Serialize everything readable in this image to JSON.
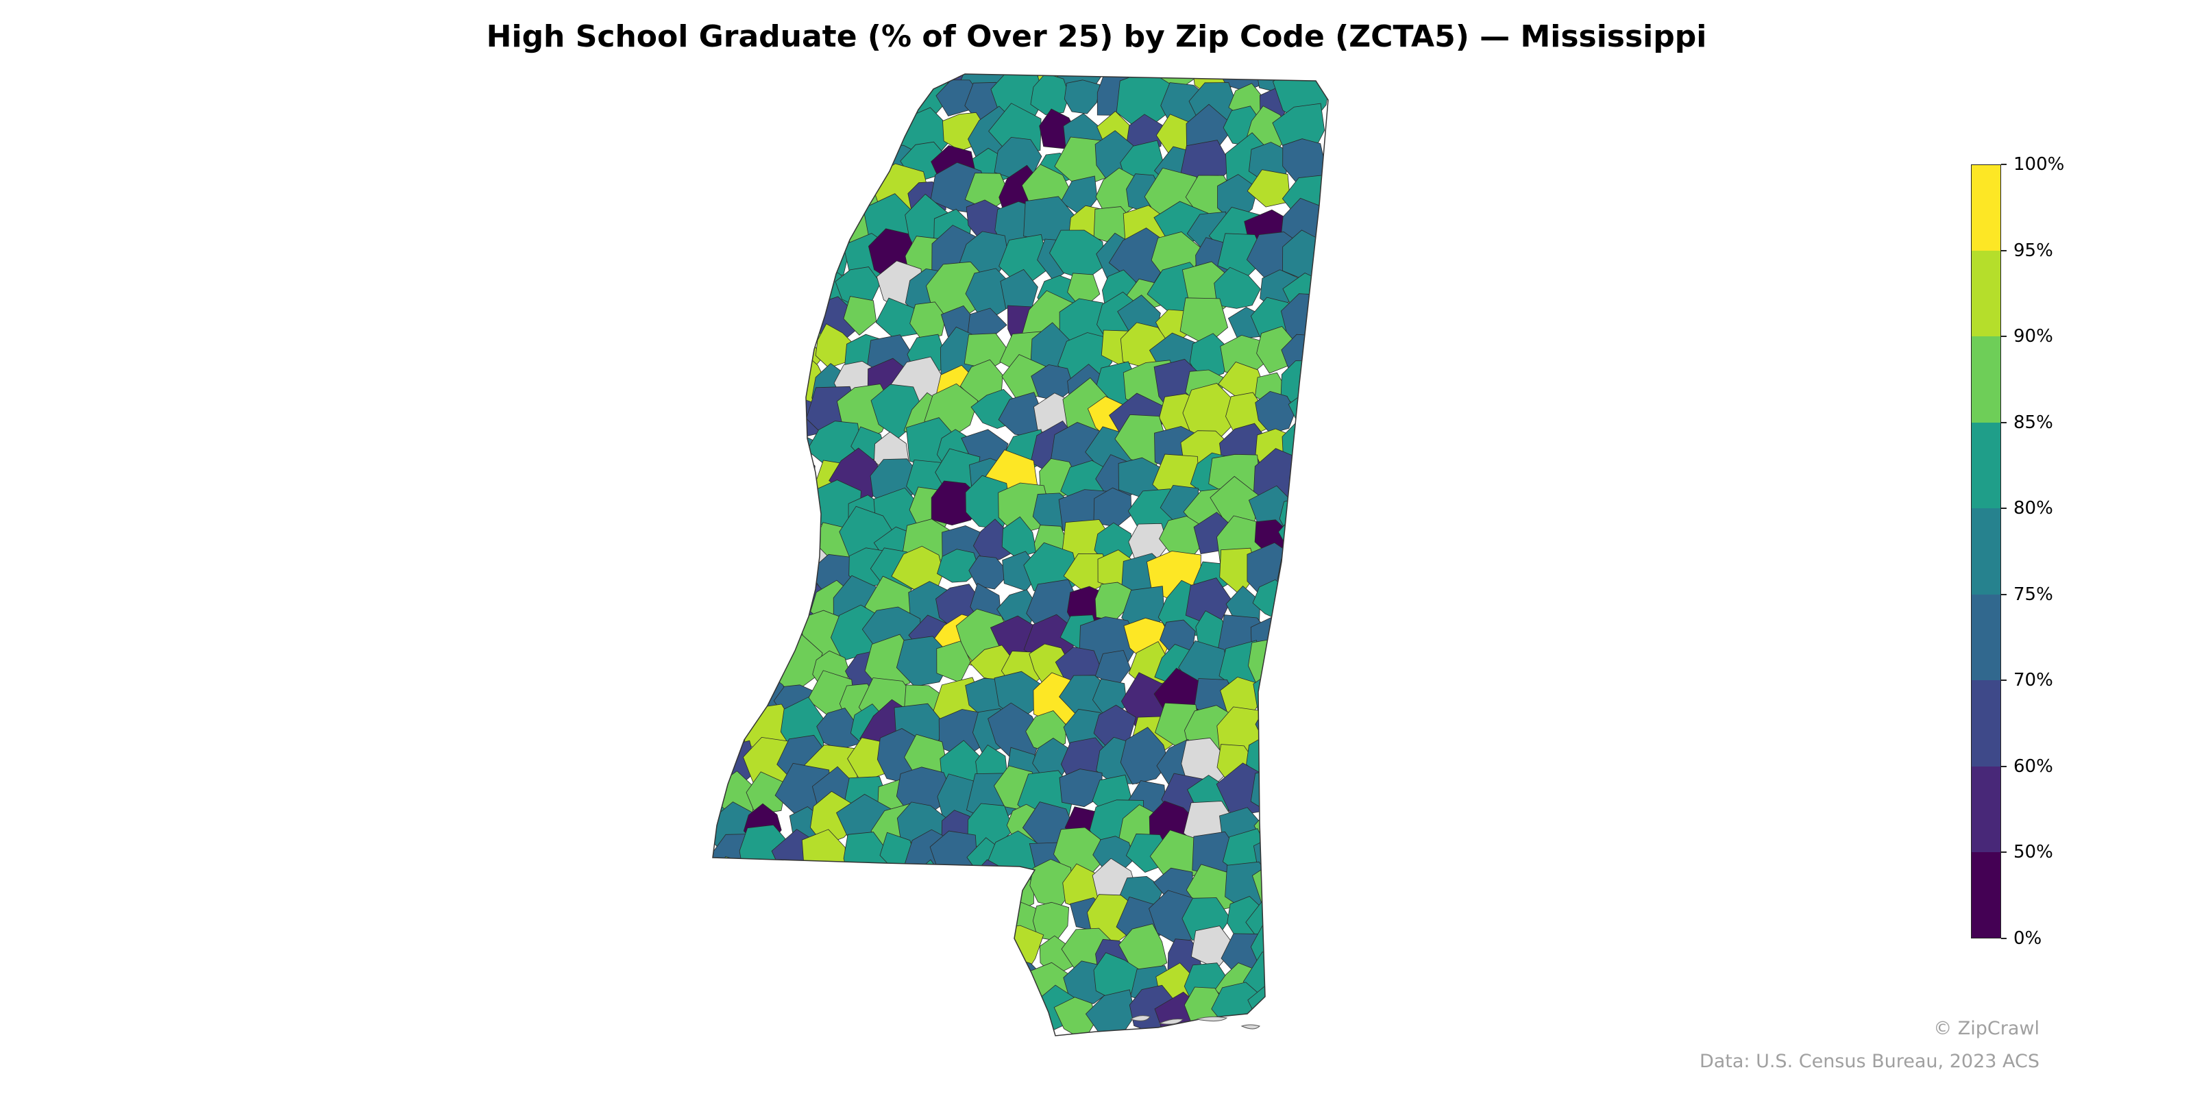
{
  "title": "High School Graduate (% of Over 25) by Zip Code (ZCTA5) — Mississippi",
  "legend": {
    "ticks": [
      "0%",
      "50%",
      "60%",
      "70%",
      "75%",
      "80%",
      "85%",
      "90%",
      "95%",
      "100%"
    ],
    "bins": [
      {
        "range": "0%-50%",
        "color": "#440154"
      },
      {
        "range": "50%-60%",
        "color": "#482878"
      },
      {
        "range": "60%-70%",
        "color": "#3e4989"
      },
      {
        "range": "70%-75%",
        "color": "#31688e"
      },
      {
        "range": "75%-80%",
        "color": "#26828e"
      },
      {
        "range": "80%-85%",
        "color": "#1f9e89"
      },
      {
        "range": "85%-90%",
        "color": "#6ece58"
      },
      {
        "range": "90%-95%",
        "color": "#b5de2b"
      },
      {
        "range": "95%-100%",
        "color": "#fde725"
      }
    ],
    "no_data_color": "#d9d9d9"
  },
  "footer": {
    "credit": "© ZipCrawl",
    "source": "Data: U.S. Census Bureau, 2023 ACS"
  }
}
